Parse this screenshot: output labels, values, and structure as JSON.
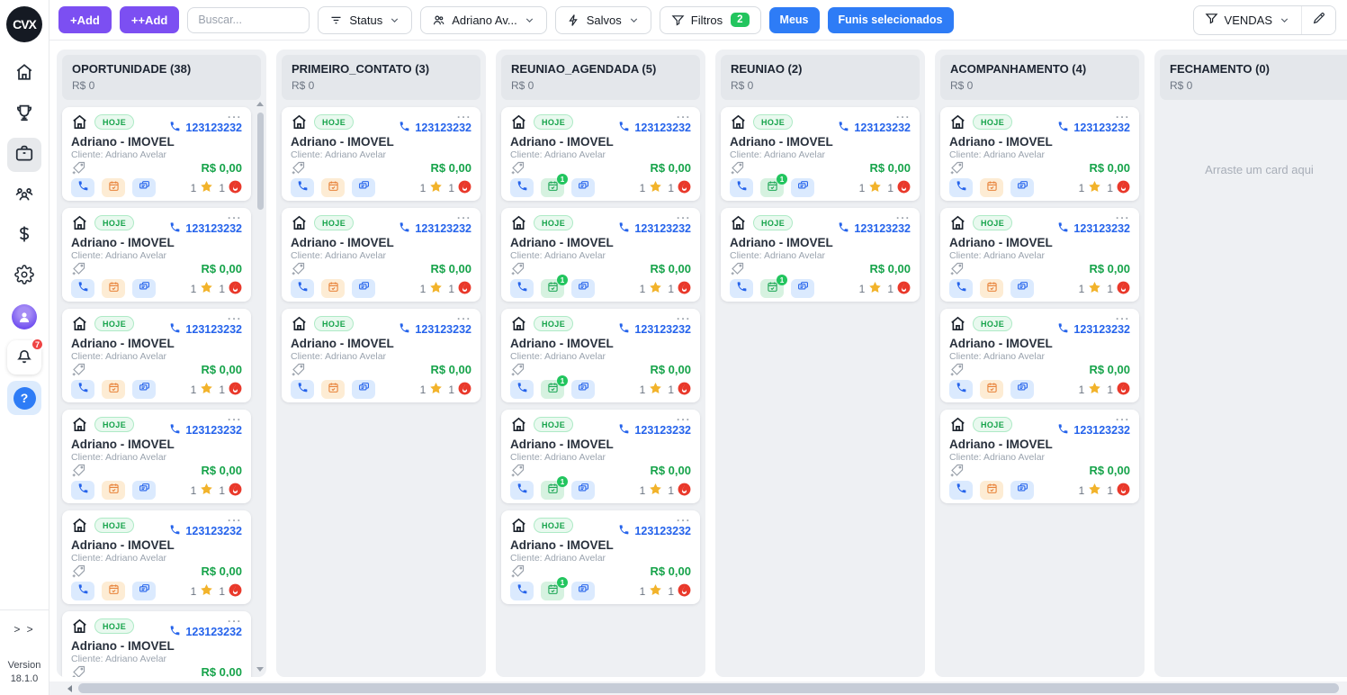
{
  "sidebar": {
    "logo": "CVX",
    "notification_count": "7",
    "help_glyph": "?",
    "expand_label": "> >",
    "version_label": "Version",
    "version_number": "18.1.0",
    "items": [
      {
        "icon": "home-icon",
        "selected": false
      },
      {
        "icon": "trophy-icon",
        "selected": false
      },
      {
        "icon": "briefcase-icon",
        "selected": true
      },
      {
        "icon": "users-icon",
        "selected": false
      },
      {
        "icon": "dollar-icon",
        "selected": false
      },
      {
        "icon": "gear-icon",
        "selected": false
      },
      {
        "icon": "user-avatar",
        "selected": false
      },
      {
        "icon": "bell-icon",
        "selected": false
      },
      {
        "icon": "help-icon",
        "selected": false
      }
    ]
  },
  "toolbar": {
    "add_label": "+Add",
    "add_plus_label": "++Add",
    "search_placeholder": "Buscar...",
    "status_label": "Status",
    "owner_label": "Adriano Av...",
    "saved_label": "Salvos",
    "filters_label": "Filtros",
    "filters_count": "2",
    "meus_label": "Meus",
    "funis_label": "Funis selecionados",
    "funnel_label": "VENDAS"
  },
  "board": {
    "empty_placeholder": "Arraste um card aqui",
    "columns": [
      {
        "title": "OPORTUNIDADE (38)",
        "total": "R$ 0",
        "card_count": 6,
        "calendar_style": "orange",
        "has_scrollbar": true
      },
      {
        "title": "PRIMEIRO_CONTATO (3)",
        "total": "R$ 0",
        "card_count": 3,
        "calendar_style": "orange",
        "has_scrollbar": false
      },
      {
        "title": "REUNIAO_AGENDADA (5)",
        "total": "R$ 0",
        "card_count": 5,
        "calendar_style": "green",
        "has_scrollbar": false
      },
      {
        "title": "REUNIAO (2)",
        "total": "R$ 0",
        "card_count": 2,
        "calendar_style": "green",
        "has_scrollbar": false
      },
      {
        "title": "ACOMPANHAMENTO (4)",
        "total": "R$ 0",
        "card_count": 4,
        "calendar_style": "orange",
        "has_scrollbar": false
      },
      {
        "title": "FECHAMENTO (0)",
        "total": "R$ 0",
        "card_count": 0,
        "calendar_style": "none",
        "has_scrollbar": false
      }
    ]
  },
  "card": {
    "badge": "HOJE",
    "phone": "123123232",
    "title": "Adriano - IMOVEL",
    "client": "Cliente: Adriano Avelar",
    "value": "R$ 0,00",
    "star_count": "1",
    "fire_count": "1",
    "calendar_badge": "1",
    "menu_glyph": "..."
  },
  "colors": {
    "accent_purple": "#7c4ff2",
    "accent_blue": "#2e7cf6",
    "link_blue": "#2563eb",
    "money_green": "#16a34a",
    "badge_green": "#22c55e",
    "badge_red": "#ef4444",
    "chip_orange": "#e8823a",
    "column_bg": "#eef0f3",
    "column_header_bg": "#e4e7eb"
  }
}
